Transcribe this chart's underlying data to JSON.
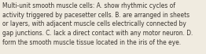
{
  "text": "Multi-unit smooth muscle cells: A. show rhythmic cycles of\nactivity triggered by pacesetter cells. B. are arranged in sheets\nor layers, with adjacent muscle cells electrically connected by\ngap junctions. C. lack a direct contact with any motor neuron. D.\nform the smooth muscle tissue located in the iris of the eye.",
  "background_color": "#f0ebe0",
  "text_color": "#3a3530",
  "font_size": 5.45,
  "fig_width": 2.62,
  "fig_height": 0.69,
  "dpi": 100
}
